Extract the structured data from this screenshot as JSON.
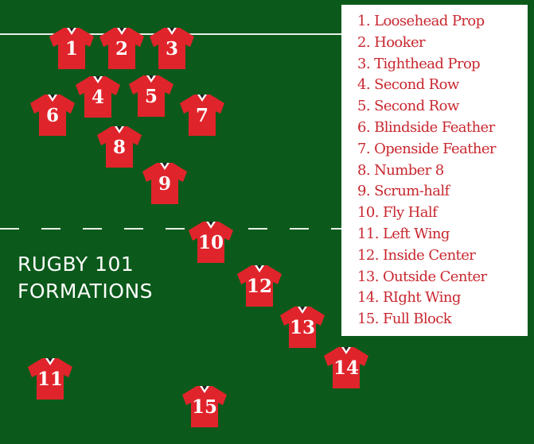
{
  "title": {
    "line1": "RUGBY 101",
    "line2": "FORMATIONS"
  },
  "colors": {
    "field": "#0c5a1b",
    "jersey": "#e0242b",
    "legend_text": "#c8272f",
    "lines": "#e8efe8"
  },
  "players": [
    "1",
    "2",
    "3",
    "4",
    "5",
    "6",
    "7",
    "8",
    "9",
    "10",
    "11",
    "12",
    "13",
    "14",
    "15"
  ],
  "legend": [
    "1.  Loosehead Prop",
    "2. Hooker",
    "3. Tighthead Prop",
    "4. Second Row",
    "5. Second Row",
    "6. Blindside Feather",
    "7. Openside Feather",
    "8. Number 8",
    "9. Scrum-half",
    "10. Fly Half",
    "11. Left Wing",
    "12. Inside Center",
    "13. Outside Center",
    "14. RIght Wing",
    "15. Full Block"
  ]
}
